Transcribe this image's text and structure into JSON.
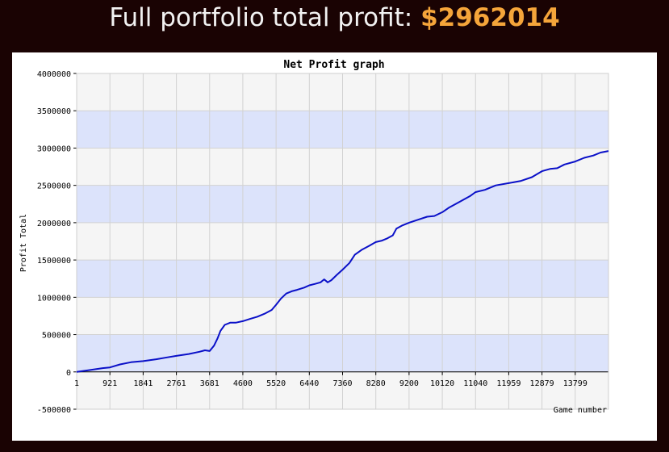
{
  "header": {
    "label": "Full portfolio total profit:",
    "amount": "$2962014"
  },
  "chart_data": {
    "type": "line",
    "title": "Net Profit graph",
    "xlabel": "Game number",
    "ylabel": "Profit Total",
    "xlim": [
      1,
      14719
    ],
    "ylim": [
      -500000,
      4000000
    ],
    "x_ticks": [
      1,
      921,
      1841,
      2761,
      3681,
      4600,
      5520,
      6440,
      7360,
      8280,
      9200,
      10120,
      11040,
      11959,
      12879,
      13799
    ],
    "x_tick_labels": [
      "1",
      "921",
      "1841",
      "2761",
      "3681",
      "4600",
      "5520",
      "6440",
      "7360",
      "8280",
      "9200",
      "10120",
      "11040",
      "11959",
      "12879",
      "13799"
    ],
    "y_ticks": [
      -500000,
      0,
      500000,
      1000000,
      1500000,
      2000000,
      2500000,
      3000000,
      3500000,
      4000000
    ],
    "y_tick_labels": [
      "-500000",
      "0",
      "500000",
      "1000000",
      "1500000",
      "2000000",
      "2500000",
      "3000000",
      "3500000",
      "4000000"
    ],
    "grid": true,
    "band_colors": [
      "#dce3fb",
      "#f5f5f5"
    ],
    "line_color": "#0a10c8",
    "series": [
      {
        "x": [
          1,
          300,
          700,
          921,
          1200,
          1500,
          1841,
          2200,
          2500,
          2761,
          3100,
          3400,
          3550,
          3681,
          3800,
          3900,
          3980,
          4100,
          4250,
          4400,
          4600,
          4800,
          5000,
          5200,
          5400,
          5520,
          5650,
          5800,
          5950,
          6100,
          6300,
          6440,
          6600,
          6750,
          6850,
          6950,
          7050,
          7200,
          7360,
          7550,
          7700,
          7900,
          8100,
          8280,
          8450,
          8600,
          8750,
          8850,
          9000,
          9200,
          9450,
          9700,
          9900,
          10120,
          10300,
          10600,
          10900,
          11040,
          11300,
          11600,
          11959,
          12300,
          12600,
          12879,
          13100,
          13300,
          13500,
          13799,
          14050,
          14300,
          14500,
          14719
        ],
        "y": [
          0,
          20000,
          50000,
          60000,
          100000,
          130000,
          145000,
          170000,
          195000,
          215000,
          240000,
          270000,
          290000,
          280000,
          350000,
          450000,
          550000,
          630000,
          660000,
          660000,
          680000,
          710000,
          740000,
          780000,
          830000,
          900000,
          980000,
          1050000,
          1080000,
          1100000,
          1130000,
          1160000,
          1180000,
          1200000,
          1240000,
          1200000,
          1230000,
          1300000,
          1370000,
          1460000,
          1570000,
          1640000,
          1690000,
          1740000,
          1760000,
          1790000,
          1830000,
          1920000,
          1960000,
          2000000,
          2040000,
          2080000,
          2090000,
          2140000,
          2200000,
          2280000,
          2360000,
          2410000,
          2440000,
          2500000,
          2530000,
          2560000,
          2610000,
          2690000,
          2720000,
          2730000,
          2780000,
          2820000,
          2870000,
          2900000,
          2940000,
          2960000
        ]
      }
    ]
  }
}
